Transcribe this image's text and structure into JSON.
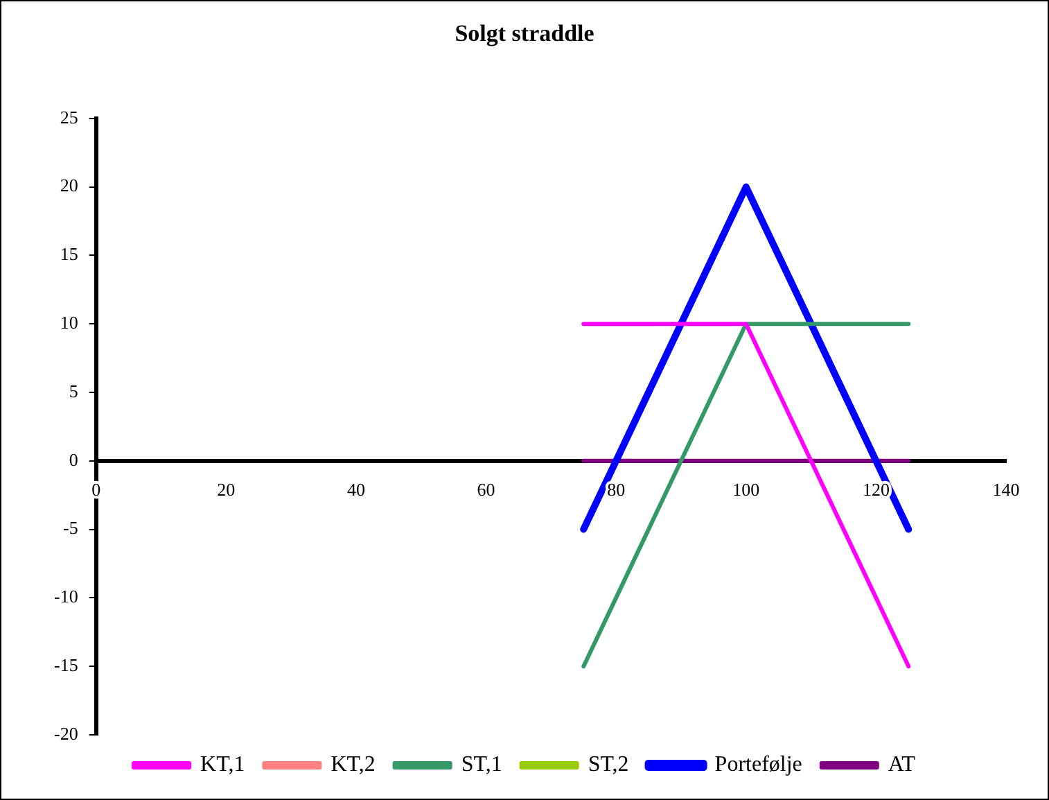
{
  "chart_data": {
    "type": "line",
    "title": "Solgt straddle",
    "x": [
      75,
      80,
      85,
      90,
      95,
      100,
      105,
      110,
      115,
      120,
      125
    ],
    "series": [
      {
        "name": "KT,1",
        "color": "#ff00ff",
        "values": [
          10,
          10,
          10,
          10,
          10,
          10,
          5,
          0,
          -5,
          -10,
          -15
        ]
      },
      {
        "name": "KT,2",
        "color": "#ff8080",
        "values": [
          null,
          null,
          null,
          null,
          null,
          null,
          null,
          null,
          null,
          null,
          null
        ]
      },
      {
        "name": "ST,1",
        "color": "#339966",
        "values": [
          -15,
          -10,
          -5,
          0,
          5,
          10,
          10,
          10,
          10,
          10,
          10
        ]
      },
      {
        "name": "ST,2",
        "color": "#99cc00",
        "values": [
          null,
          null,
          null,
          null,
          null,
          null,
          null,
          null,
          null,
          null,
          null
        ]
      },
      {
        "name": "Portefølje",
        "color": "#0000ff",
        "values": [
          -5,
          0,
          5,
          10,
          15,
          20,
          15,
          10,
          5,
          0,
          -5
        ]
      },
      {
        "name": "AT",
        "color": "#800080",
        "values": [
          0,
          0,
          0,
          0,
          0,
          0,
          0,
          0,
          0,
          0,
          0
        ]
      }
    ],
    "xlim": [
      0,
      140
    ],
    "xticks": [
      0,
      20,
      40,
      60,
      80,
      100,
      120,
      140
    ],
    "ylim": [
      -20,
      25
    ],
    "yticks": [
      -20,
      -15,
      -10,
      -5,
      0,
      5,
      10,
      15,
      20,
      25
    ],
    "grid": false,
    "legend": "bottom",
    "marker": "none",
    "line_style": "solid"
  }
}
